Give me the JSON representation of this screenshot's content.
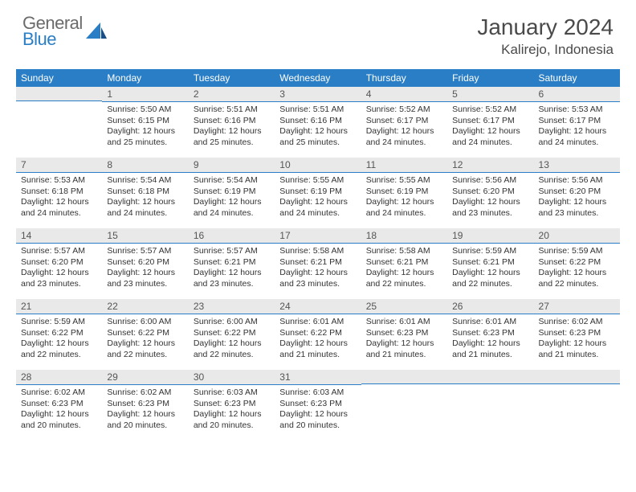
{
  "logo": {
    "word1": "General",
    "word2": "Blue"
  },
  "header": {
    "title": "January 2024",
    "location": "Kalirejo, Indonesia"
  },
  "colors": {
    "accent": "#2a7ec5",
    "daynum_bg": "#e9e9e9",
    "header_text": "#4a4a4a",
    "body_text": "#333333"
  },
  "weekdays": [
    "Sunday",
    "Monday",
    "Tuesday",
    "Wednesday",
    "Thursday",
    "Friday",
    "Saturday"
  ],
  "start_offset": 1,
  "days": [
    {
      "n": 1,
      "sr": "5:50 AM",
      "ss": "6:15 PM",
      "dl": "12 hours and 25 minutes."
    },
    {
      "n": 2,
      "sr": "5:51 AM",
      "ss": "6:16 PM",
      "dl": "12 hours and 25 minutes."
    },
    {
      "n": 3,
      "sr": "5:51 AM",
      "ss": "6:16 PM",
      "dl": "12 hours and 25 minutes."
    },
    {
      "n": 4,
      "sr": "5:52 AM",
      "ss": "6:17 PM",
      "dl": "12 hours and 24 minutes."
    },
    {
      "n": 5,
      "sr": "5:52 AM",
      "ss": "6:17 PM",
      "dl": "12 hours and 24 minutes."
    },
    {
      "n": 6,
      "sr": "5:53 AM",
      "ss": "6:17 PM",
      "dl": "12 hours and 24 minutes."
    },
    {
      "n": 7,
      "sr": "5:53 AM",
      "ss": "6:18 PM",
      "dl": "12 hours and 24 minutes."
    },
    {
      "n": 8,
      "sr": "5:54 AM",
      "ss": "6:18 PM",
      "dl": "12 hours and 24 minutes."
    },
    {
      "n": 9,
      "sr": "5:54 AM",
      "ss": "6:19 PM",
      "dl": "12 hours and 24 minutes."
    },
    {
      "n": 10,
      "sr": "5:55 AM",
      "ss": "6:19 PM",
      "dl": "12 hours and 24 minutes."
    },
    {
      "n": 11,
      "sr": "5:55 AM",
      "ss": "6:19 PM",
      "dl": "12 hours and 24 minutes."
    },
    {
      "n": 12,
      "sr": "5:56 AM",
      "ss": "6:20 PM",
      "dl": "12 hours and 23 minutes."
    },
    {
      "n": 13,
      "sr": "5:56 AM",
      "ss": "6:20 PM",
      "dl": "12 hours and 23 minutes."
    },
    {
      "n": 14,
      "sr": "5:57 AM",
      "ss": "6:20 PM",
      "dl": "12 hours and 23 minutes."
    },
    {
      "n": 15,
      "sr": "5:57 AM",
      "ss": "6:20 PM",
      "dl": "12 hours and 23 minutes."
    },
    {
      "n": 16,
      "sr": "5:57 AM",
      "ss": "6:21 PM",
      "dl": "12 hours and 23 minutes."
    },
    {
      "n": 17,
      "sr": "5:58 AM",
      "ss": "6:21 PM",
      "dl": "12 hours and 23 minutes."
    },
    {
      "n": 18,
      "sr": "5:58 AM",
      "ss": "6:21 PM",
      "dl": "12 hours and 22 minutes."
    },
    {
      "n": 19,
      "sr": "5:59 AM",
      "ss": "6:21 PM",
      "dl": "12 hours and 22 minutes."
    },
    {
      "n": 20,
      "sr": "5:59 AM",
      "ss": "6:22 PM",
      "dl": "12 hours and 22 minutes."
    },
    {
      "n": 21,
      "sr": "5:59 AM",
      "ss": "6:22 PM",
      "dl": "12 hours and 22 minutes."
    },
    {
      "n": 22,
      "sr": "6:00 AM",
      "ss": "6:22 PM",
      "dl": "12 hours and 22 minutes."
    },
    {
      "n": 23,
      "sr": "6:00 AM",
      "ss": "6:22 PM",
      "dl": "12 hours and 22 minutes."
    },
    {
      "n": 24,
      "sr": "6:01 AM",
      "ss": "6:22 PM",
      "dl": "12 hours and 21 minutes."
    },
    {
      "n": 25,
      "sr": "6:01 AM",
      "ss": "6:23 PM",
      "dl": "12 hours and 21 minutes."
    },
    {
      "n": 26,
      "sr": "6:01 AM",
      "ss": "6:23 PM",
      "dl": "12 hours and 21 minutes."
    },
    {
      "n": 27,
      "sr": "6:02 AM",
      "ss": "6:23 PM",
      "dl": "12 hours and 21 minutes."
    },
    {
      "n": 28,
      "sr": "6:02 AM",
      "ss": "6:23 PM",
      "dl": "12 hours and 20 minutes."
    },
    {
      "n": 29,
      "sr": "6:02 AM",
      "ss": "6:23 PM",
      "dl": "12 hours and 20 minutes."
    },
    {
      "n": 30,
      "sr": "6:03 AM",
      "ss": "6:23 PM",
      "dl": "12 hours and 20 minutes."
    },
    {
      "n": 31,
      "sr": "6:03 AM",
      "ss": "6:23 PM",
      "dl": "12 hours and 20 minutes."
    }
  ],
  "labels": {
    "sunrise": "Sunrise:",
    "sunset": "Sunset:",
    "daylight": "Daylight:"
  }
}
